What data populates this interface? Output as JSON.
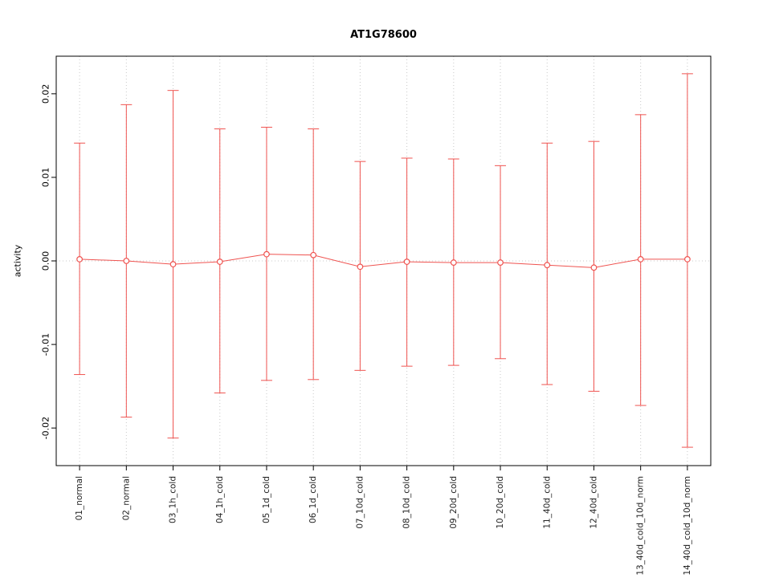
{
  "chart_data": {
    "type": "scatter",
    "title": "AT1G78600",
    "xlabel": "",
    "ylabel": "activity",
    "ylim": [
      -0.0245,
      0.0245
    ],
    "yticks": [
      "-0.02",
      "-0.01",
      "0.00",
      "0.01",
      "0.02"
    ],
    "grid": "dotted vertical line at each category, dotted horizontal line at 0",
    "legend": "none",
    "categories": [
      "01_normal",
      "02_normal",
      "03_1h_cold",
      "04_1h_cold",
      "05_1d_cold",
      "06_1d_cold",
      "07_10d_cold",
      "08_10d_cold",
      "09_20d_cold",
      "10_20d_cold",
      "11_40d_cold",
      "12_40d_cold",
      "13_40d_cold_10d_norm",
      "14_40d_cold_10d_norm"
    ],
    "series": [
      {
        "name": "activity mean",
        "values": [
          0.0002,
          0.0,
          -0.0004,
          -0.0001,
          0.0008,
          0.0007,
          -0.0007,
          -0.0001,
          -0.0002,
          -0.0002,
          -0.0005,
          -0.0008,
          0.0002,
          0.0002
        ]
      },
      {
        "name": "error bar upper",
        "values": [
          0.0141,
          0.0187,
          0.0204,
          0.0158,
          0.016,
          0.0158,
          0.0119,
          0.0123,
          0.0122,
          0.0114,
          0.0141,
          0.0143,
          0.0175,
          0.0224
        ]
      },
      {
        "name": "error bar lower",
        "values": [
          -0.0136,
          -0.0187,
          -0.0212,
          -0.0158,
          -0.0143,
          -0.0142,
          -0.0131,
          -0.0126,
          -0.0125,
          -0.0117,
          -0.0148,
          -0.0156,
          -0.0173,
          -0.0223
        ]
      }
    ],
    "colors": {
      "series": "#ef5350",
      "grid": "#c8c8c8",
      "axis": "#000000",
      "background": "#ffffff"
    }
  }
}
